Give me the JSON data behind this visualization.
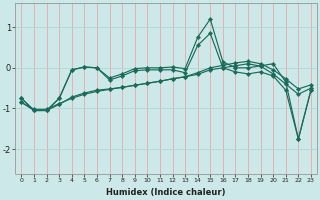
{
  "xlabel": "Humidex (Indice chaleur)",
  "bg_color": "#cce8e8",
  "grid_color_v": "#e8b0b0",
  "grid_color_h": "#b8d8d8",
  "line_color": "#1a6b5a",
  "xlim": [
    -0.5,
    23.5
  ],
  "ylim": [
    -2.6,
    1.6
  ],
  "yticks": [
    1,
    0,
    -1,
    -2
  ],
  "xticks": [
    0,
    1,
    2,
    3,
    4,
    5,
    6,
    7,
    8,
    9,
    10,
    11,
    12,
    13,
    14,
    15,
    16,
    17,
    18,
    19,
    20,
    21,
    22,
    23
  ],
  "line1_y": [
    -0.75,
    -1.05,
    -1.05,
    -0.75,
    -0.05,
    0.02,
    0.0,
    -0.25,
    -0.15,
    -0.02,
    0.0,
    0.0,
    0.02,
    -0.02,
    0.75,
    1.2,
    0.15,
    0.0,
    0.0,
    0.05,
    0.1,
    -0.35,
    -1.75,
    -0.55
  ],
  "line2_y": [
    -0.75,
    -1.05,
    -1.05,
    -0.75,
    -0.05,
    0.02,
    0.0,
    -0.3,
    -0.2,
    -0.07,
    -0.05,
    -0.05,
    -0.05,
    -0.12,
    0.55,
    0.85,
    0.0,
    -0.1,
    -0.15,
    -0.1,
    -0.2,
    -0.55,
    -1.75,
    -0.55
  ],
  "line3_y": [
    -0.85,
    -1.05,
    -1.05,
    -0.9,
    -0.72,
    -0.62,
    -0.55,
    -0.52,
    -0.48,
    -0.43,
    -0.38,
    -0.33,
    -0.27,
    -0.22,
    -0.16,
    -0.05,
    0.0,
    0.05,
    0.1,
    0.04,
    -0.15,
    -0.4,
    -0.65,
    -0.5
  ],
  "line4_y": [
    -0.85,
    -1.02,
    -1.02,
    -0.88,
    -0.75,
    -0.65,
    -0.58,
    -0.53,
    -0.48,
    -0.43,
    -0.38,
    -0.33,
    -0.27,
    -0.22,
    -0.12,
    0.0,
    0.06,
    0.12,
    0.16,
    0.1,
    -0.05,
    -0.27,
    -0.52,
    -0.42
  ]
}
